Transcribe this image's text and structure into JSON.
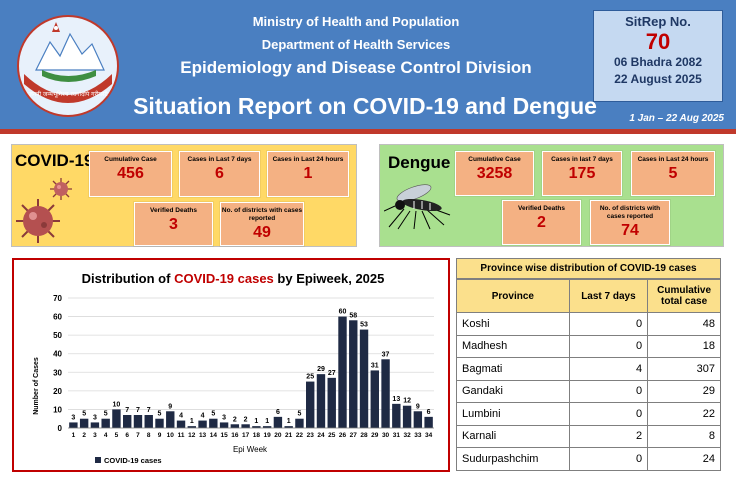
{
  "header": {
    "ministry": "Ministry of Health and Population",
    "department": "Department of Health Services",
    "division": "Epidemiology and Disease Control Division",
    "title": "Situation Report on COVID-19 and Dengue",
    "date_range": "1 Jan – 22 Aug 2025",
    "emblem_text": "जननी जन्मभूमिश्च स्वर्गादपि गरीयसी",
    "sitrep": {
      "label": "SitRep No.",
      "number": "70",
      "date_np": "06 Bhadra 2082",
      "date_en": "22 August 2025"
    }
  },
  "covid": {
    "title": "COVID-19",
    "stats": [
      {
        "label": "Cumulative Case",
        "value": "456"
      },
      {
        "label": "Cases in Last 7 days",
        "value": "6"
      },
      {
        "label": "Cases in Last 24 hours",
        "value": "1"
      },
      {
        "label": "Verified Deaths",
        "value": "3"
      },
      {
        "label": "No. of districts with cases reported",
        "value": "49"
      }
    ]
  },
  "dengue": {
    "title": "Dengue",
    "stats": [
      {
        "label": "Cumulative Case",
        "value": "3258"
      },
      {
        "label": "Cases in last 7 days",
        "value": "175"
      },
      {
        "label": "Cases in Last 24 hours",
        "value": "5"
      },
      {
        "label": "Verified Deaths",
        "value": "2"
      },
      {
        "label": "No. of districts with cases reported",
        "value": "74"
      }
    ]
  },
  "chart_data": {
    "type": "bar",
    "title_prefix": "Distribution of ",
    "title_highlight": "COVID-19 cases",
    "title_suffix": " by Epiweek, 2025",
    "xlabel": "Epi Week",
    "ylabel": "Number of Cases",
    "ylim": [
      0,
      70
    ],
    "yticks": [
      0,
      10,
      20,
      30,
      40,
      50,
      60,
      70
    ],
    "grid": true,
    "legend_position": "bottom-left",
    "bar_color": "#1f2a44",
    "categories": [
      "1",
      "2",
      "3",
      "4",
      "5",
      "6",
      "7",
      "8",
      "9",
      "10",
      "11",
      "12",
      "13",
      "14",
      "15",
      "16",
      "17",
      "18",
      "19",
      "20",
      "21",
      "22",
      "23",
      "24",
      "25",
      "26",
      "27",
      "28",
      "29",
      "30",
      "31",
      "32",
      "33",
      "34"
    ],
    "series": [
      {
        "name": "COVID-19 cases",
        "values": [
          3,
          5,
          3,
          5,
          10,
          7,
          7,
          7,
          5,
          9,
          4,
          1,
          4,
          5,
          3,
          2,
          2,
          1,
          1,
          6,
          1,
          5,
          25,
          29,
          27,
          60,
          58,
          53,
          31,
          37,
          13,
          12,
          9,
          6
        ]
      }
    ]
  },
  "province_table": {
    "caption": "Province wise distribution of COVID-19 cases",
    "headers": [
      "Province",
      "Last 7 days",
      "Cumulative total case"
    ],
    "rows": [
      {
        "province": "Koshi",
        "last7": "0",
        "cumulative": "48"
      },
      {
        "province": "Madhesh",
        "last7": "0",
        "cumulative": "18"
      },
      {
        "province": "Bagmati",
        "last7": "4",
        "cumulative": "307"
      },
      {
        "province": "Gandaki",
        "last7": "0",
        "cumulative": "29"
      },
      {
        "province": "Lumbini",
        "last7": "0",
        "cumulative": "22"
      },
      {
        "province": "Karnali",
        "last7": "2",
        "cumulative": "8"
      },
      {
        "province": "Sudurpashchim",
        "last7": "0",
        "cumulative": "24"
      }
    ]
  },
  "colors": {
    "header_blue": "#4a7fc1",
    "header_red_stripe": "#c0392b",
    "covid_panel": "#ffd966",
    "dengue_panel": "#a9e08f",
    "stat_box": "#f4b183",
    "stat_value": "#c00000",
    "table_header": "#fbe08c"
  }
}
